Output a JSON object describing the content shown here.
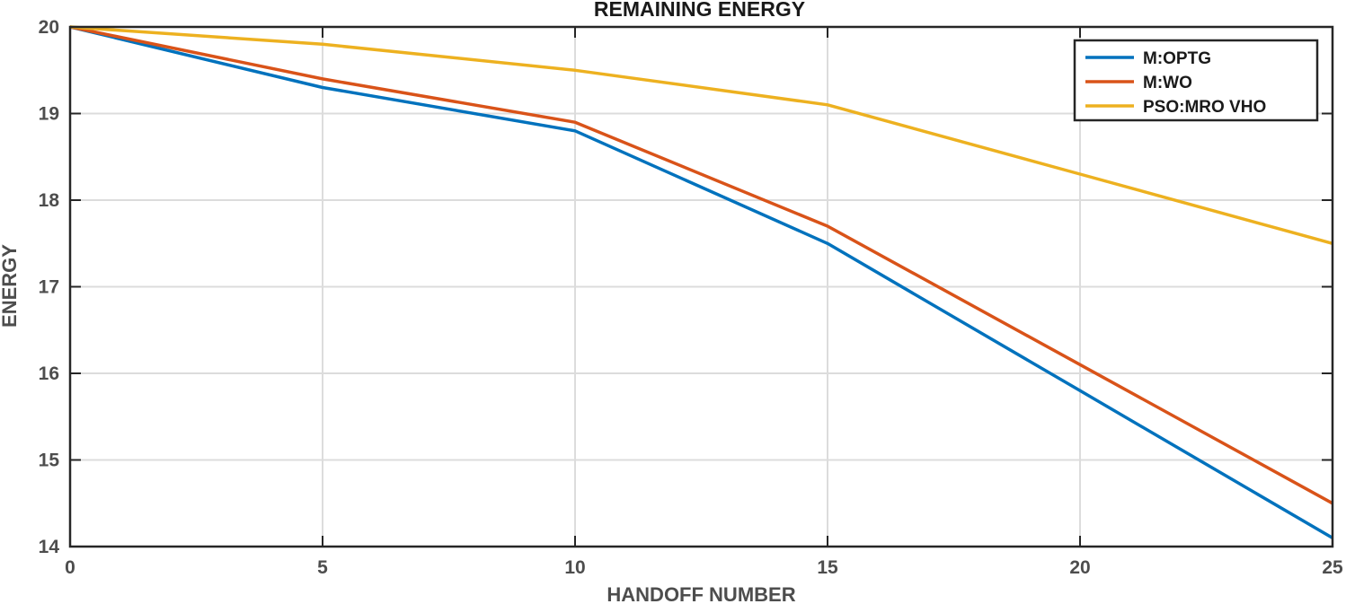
{
  "chart_data": {
    "type": "line",
    "title": "REMAINING ENERGY",
    "xlabel": "HANDOFF NUMBER",
    "ylabel": "ENERGY",
    "x": [
      0,
      5,
      10,
      15,
      20,
      25
    ],
    "xlim": [
      0,
      25
    ],
    "ylim": [
      14,
      20
    ],
    "xticks": [
      0,
      5,
      10,
      15,
      20,
      25
    ],
    "yticks": [
      14,
      15,
      16,
      17,
      18,
      19,
      20
    ],
    "grid": true,
    "legend_position": "top-right",
    "series": [
      {
        "name": "M:OPTG",
        "color": "#0072BD",
        "values": [
          20,
          19.3,
          18.8,
          17.5,
          15.8,
          14.1
        ]
      },
      {
        "name": "M:WO",
        "color": "#D95319",
        "values": [
          20,
          19.4,
          18.9,
          17.7,
          16.1,
          14.5
        ]
      },
      {
        "name": "PSO:MRO VHO",
        "color": "#EDB120",
        "values": [
          20,
          19.8,
          19.5,
          19.1,
          18.3,
          17.5
        ]
      }
    ]
  }
}
